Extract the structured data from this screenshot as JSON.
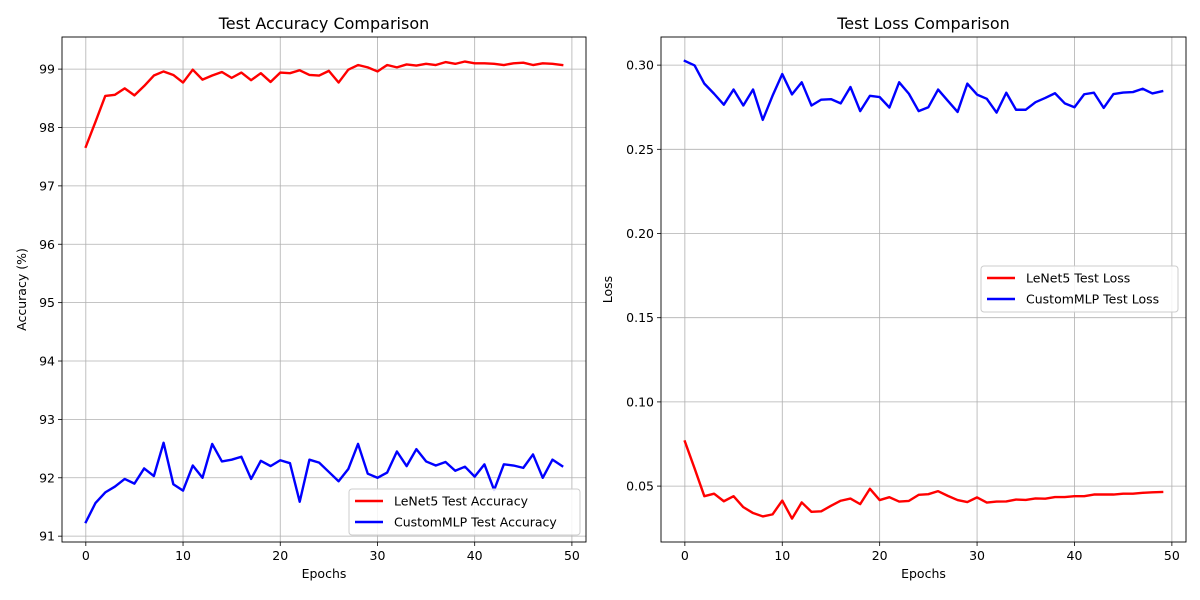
{
  "chart_data": [
    {
      "type": "line",
      "title": "Test Accuracy Comparison",
      "xlabel": "Epochs",
      "ylabel": "Accuracy (%)",
      "xlim": [
        -2.45,
        51.45
      ],
      "ylim": [
        90.9,
        99.55
      ],
      "xticks": [
        0,
        10,
        20,
        30,
        40,
        50
      ],
      "yticks": [
        91,
        92,
        93,
        94,
        95,
        96,
        97,
        98,
        99
      ],
      "grid": true,
      "legend_position": "lower-right",
      "x": [
        0,
        1,
        2,
        3,
        4,
        5,
        6,
        7,
        8,
        9,
        10,
        11,
        12,
        13,
        14,
        15,
        16,
        17,
        18,
        19,
        20,
        21,
        22,
        23,
        24,
        25,
        26,
        27,
        28,
        29,
        30,
        31,
        32,
        33,
        34,
        35,
        36,
        37,
        38,
        39,
        40,
        41,
        42,
        43,
        44,
        45,
        46,
        47,
        48,
        49
      ],
      "series": [
        {
          "name": "LeNet5 Test Accuracy",
          "color": "#ff0000",
          "values": [
            97.67,
            98.1,
            98.54,
            98.56,
            98.67,
            98.55,
            98.71,
            98.89,
            98.96,
            98.9,
            98.77,
            98.99,
            98.82,
            98.89,
            98.95,
            98.85,
            98.94,
            98.81,
            98.93,
            98.78,
            98.94,
            98.93,
            98.98,
            98.9,
            98.89,
            98.97,
            98.77,
            98.99,
            99.07,
            99.03,
            98.96,
            99.07,
            99.03,
            99.08,
            99.06,
            99.09,
            99.07,
            99.12,
            99.09,
            99.13,
            99.1,
            99.1,
            99.09,
            99.07,
            99.1,
            99.11,
            99.07,
            99.1,
            99.09,
            99.07
          ]
        },
        {
          "name": "CustomMLP Test Accuracy",
          "color": "#0000ff",
          "values": [
            91.24,
            91.57,
            91.75,
            91.85,
            91.98,
            91.9,
            92.16,
            92.03,
            92.6,
            91.89,
            91.78,
            92.21,
            92.0,
            92.58,
            92.28,
            92.31,
            92.36,
            91.98,
            92.29,
            92.2,
            92.3,
            92.25,
            91.59,
            92.31,
            92.26,
            92.1,
            91.94,
            92.15,
            92.58,
            92.07,
            92.0,
            92.09,
            92.45,
            92.2,
            92.49,
            92.28,
            92.21,
            92.27,
            92.12,
            92.19,
            92.02,
            92.23,
            91.79,
            92.23,
            92.21,
            92.17,
            92.4,
            92.0,
            92.31,
            92.2
          ]
        }
      ]
    },
    {
      "type": "line",
      "title": "Test Loss Comparison",
      "xlabel": "Epochs",
      "ylabel": "Loss",
      "xlim": [
        -2.45,
        51.45
      ],
      "ylim": [
        0.0168,
        0.3167
      ],
      "xticks": [
        0,
        10,
        20,
        30,
        40,
        50
      ],
      "yticks": [
        0.05,
        0.1,
        0.15,
        0.2,
        0.25,
        0.3
      ],
      "ytick_labels": [
        "0.05",
        "0.10",
        "0.15",
        "0.20",
        "0.25",
        "0.30"
      ],
      "grid": true,
      "legend_position": "center-right",
      "x": [
        0,
        1,
        2,
        3,
        4,
        5,
        6,
        7,
        8,
        9,
        10,
        11,
        12,
        13,
        14,
        15,
        16,
        17,
        18,
        19,
        20,
        21,
        22,
        23,
        24,
        25,
        26,
        27,
        28,
        29,
        30,
        31,
        32,
        33,
        34,
        35,
        36,
        37,
        38,
        39,
        40,
        41,
        42,
        43,
        44,
        45,
        46,
        47,
        48,
        49
      ],
      "series": [
        {
          "name": "LeNet5 Test Loss",
          "color": "#ff0000",
          "values": [
            0.0765,
            0.0605,
            0.044,
            0.0455,
            0.041,
            0.044,
            0.0375,
            0.034,
            0.032,
            0.0332,
            0.0414,
            0.0307,
            0.0403,
            0.0347,
            0.035,
            0.0383,
            0.0413,
            0.0426,
            0.0393,
            0.0484,
            0.0417,
            0.0434,
            0.0408,
            0.0412,
            0.0448,
            0.0452,
            0.047,
            0.0442,
            0.0417,
            0.0405,
            0.0433,
            0.0402,
            0.0408,
            0.0409,
            0.042,
            0.0418,
            0.0427,
            0.0425,
            0.0435,
            0.0435,
            0.044,
            0.044,
            0.045,
            0.045,
            0.045,
            0.0455,
            0.0455,
            0.046,
            0.0463,
            0.0465
          ]
        },
        {
          "name": "CustomMLP Test Loss",
          "color": "#0000ff",
          "values": [
            0.3025,
            0.2998,
            0.289,
            0.283,
            0.2765,
            0.2855,
            0.276,
            0.2855,
            0.2675,
            0.2818,
            0.2947,
            0.2826,
            0.2898,
            0.276,
            0.2795,
            0.2798,
            0.2773,
            0.287,
            0.2727,
            0.2818,
            0.281,
            0.2748,
            0.2898,
            0.283,
            0.2727,
            0.275,
            0.2855,
            0.2788,
            0.2722,
            0.289,
            0.2825,
            0.28,
            0.2718,
            0.2836,
            0.2735,
            0.2735,
            0.278,
            0.2805,
            0.2833,
            0.2773,
            0.275,
            0.2827,
            0.2836,
            0.2746,
            0.2828,
            0.2837,
            0.284,
            0.286,
            0.2832,
            0.2845
          ]
        }
      ]
    }
  ]
}
